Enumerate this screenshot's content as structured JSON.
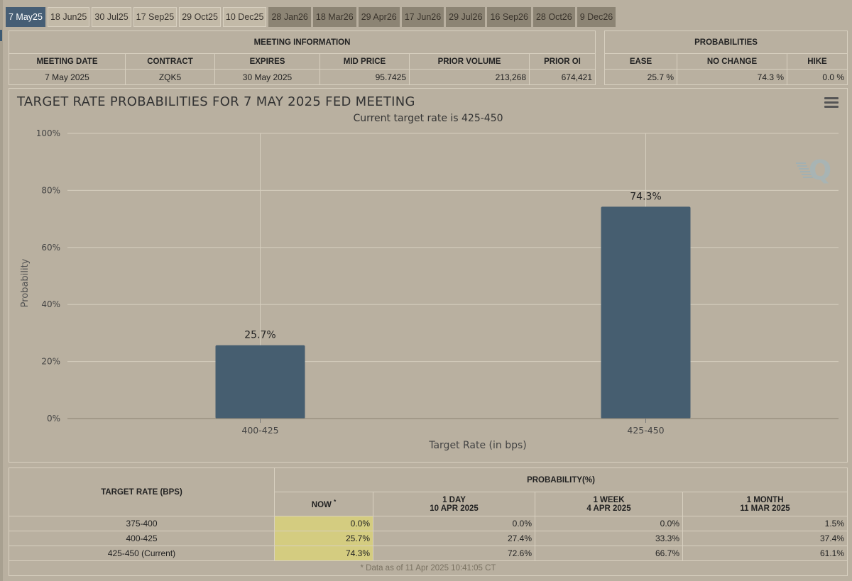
{
  "tabs": [
    "7 May25",
    "18 Jun25",
    "30 Jul25",
    "17 Sep25",
    "29 Oct25",
    "10 Dec25",
    "28 Jan26",
    "18 Mar26",
    "29 Apr26",
    "17 Jun26",
    "29 Jul26",
    "16 Sep26",
    "28 Oct26",
    "9 Dec26"
  ],
  "meeting_info": {
    "heading": "MEETING INFORMATION",
    "headers": [
      "MEETING DATE",
      "CONTRACT",
      "EXPIRES",
      "MID PRICE",
      "PRIOR VOLUME",
      "PRIOR OI"
    ],
    "row": [
      "7 May 2025",
      "ZQK5",
      "30 May 2025",
      "95.7425",
      "213,268",
      "674,421"
    ]
  },
  "probabilities": {
    "heading": "PROBABILITIES",
    "headers": [
      "EASE",
      "NO CHANGE",
      "HIKE"
    ],
    "row": [
      "25.7 %",
      "74.3 %",
      "0.0 %"
    ]
  },
  "chart_data": {
    "type": "bar",
    "title": "TARGET RATE PROBABILITIES FOR 7 MAY 2025 FED MEETING",
    "subtitle": "Current target rate is 425-450",
    "xlabel": "Target Rate (in bps)",
    "ylabel": "Probability",
    "categories": [
      "400-425",
      "425-450"
    ],
    "values": [
      25.7,
      74.3
    ],
    "data_labels": [
      "25.7%",
      "74.3%"
    ],
    "ylim": [
      0,
      100
    ],
    "yticks": [
      "0%",
      "20%",
      "40%",
      "60%",
      "80%",
      "100%"
    ],
    "grid": true,
    "bar_color": "#465e70"
  },
  "bottom_table": {
    "target_header": "TARGET RATE (BPS)",
    "prob_header": "PROBABILITY(%)",
    "cols": [
      {
        "l1": "NOW",
        "sup": "*",
        "l2": ""
      },
      {
        "l1": "1 DAY",
        "l2": "10 APR 2025"
      },
      {
        "l1": "1 WEEK",
        "l2": "4 APR 2025"
      },
      {
        "l1": "1 MONTH",
        "l2": "11 MAR 2025"
      }
    ],
    "rows": [
      {
        "rate": "375-400",
        "now": "0.0%",
        "day": "0.0%",
        "week": "0.0%",
        "month": "1.5%"
      },
      {
        "rate": "400-425",
        "now": "25.7%",
        "day": "27.4%",
        "week": "33.3%",
        "month": "37.4%"
      },
      {
        "rate": "425-450 (Current)",
        "now": "74.3%",
        "day": "72.6%",
        "week": "66.7%",
        "month": "61.1%"
      }
    ],
    "footnote": "* Data as of 11 Apr 2025 10:41:05 CT"
  },
  "colors": {
    "background": "#b9b0a0",
    "active_tab": "#465e75",
    "now_highlight": "#d4cc80",
    "bar": "#465e70"
  },
  "icons": {
    "menu": "hamburger-menu-icon",
    "logo": "quikstrike-q-logo"
  }
}
